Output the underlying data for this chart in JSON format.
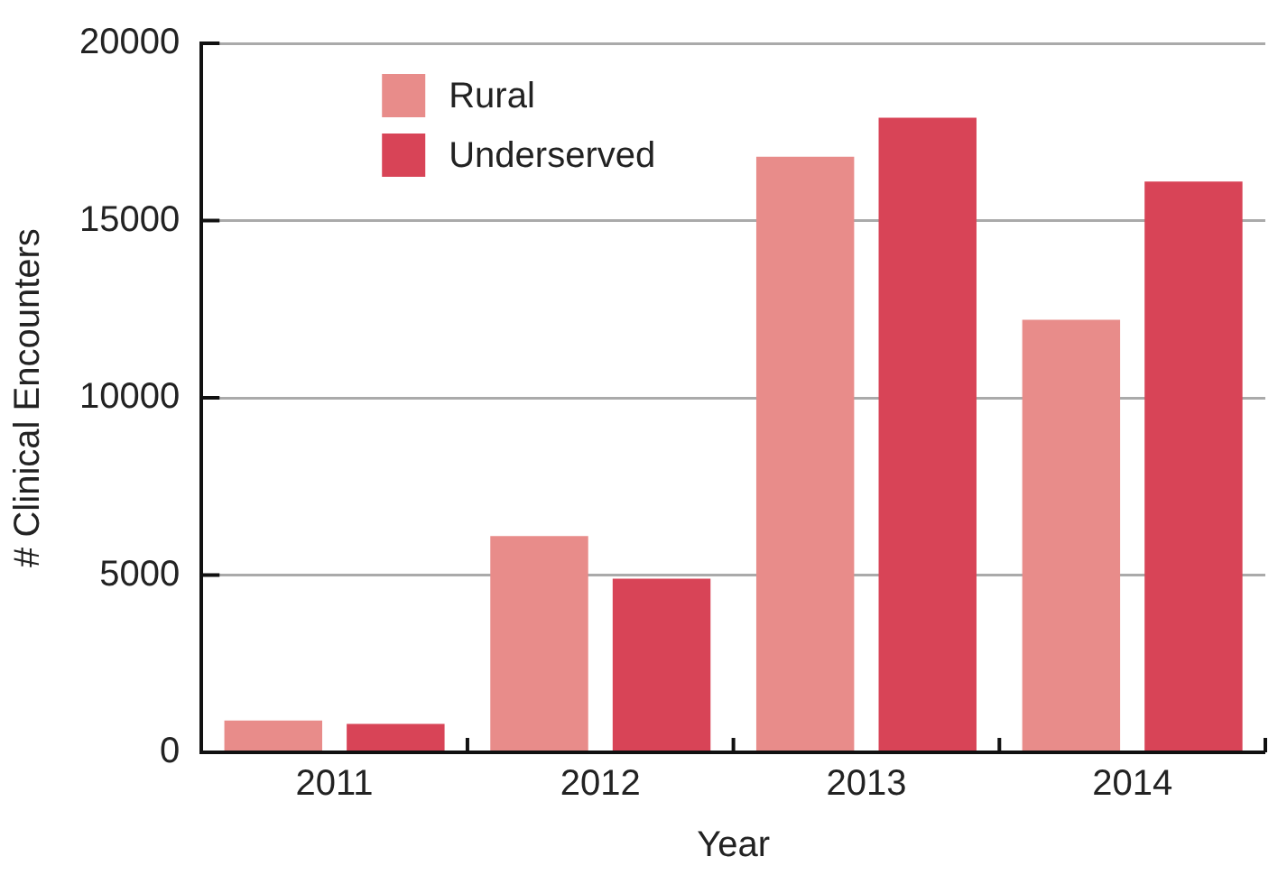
{
  "chart_data": {
    "type": "bar",
    "xlabel": "Year",
    "ylabel": "# Clinical Encounters",
    "categories": [
      "2011",
      "2012",
      "2013",
      "2014"
    ],
    "series": [
      {
        "name": "Rural",
        "color": "#e88c8a",
        "values": [
          900,
          6100,
          16800,
          12200
        ]
      },
      {
        "name": "Underserved",
        "color": "#d84457",
        "values": [
          800,
          4900,
          17900,
          16100
        ]
      }
    ],
    "ylim": [
      0,
      20000
    ],
    "yticks": [
      0,
      5000,
      10000,
      15000,
      20000
    ],
    "grid": "y",
    "legend": "top left"
  }
}
